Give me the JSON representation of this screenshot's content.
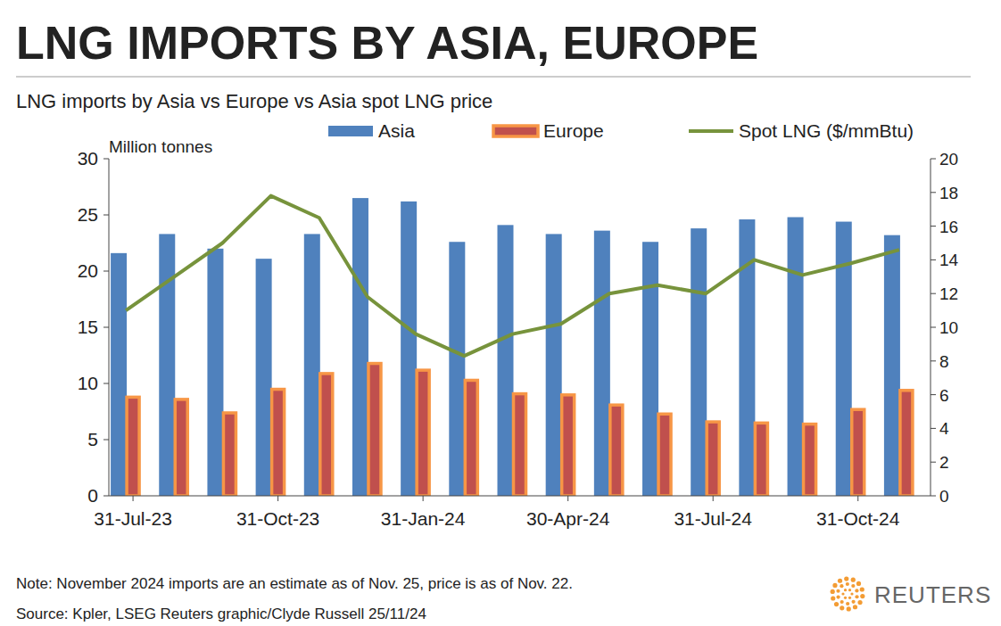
{
  "chart_data": {
    "type": "bar",
    "title": "LNG IMPORTS BY ASIA, EUROPE",
    "subtitle": "LNG imports by Asia vs Europe vs Asia spot LNG price",
    "y_label": "Million tonnes",
    "categories": [
      "31-Jul-23",
      null,
      null,
      "31-Oct-23",
      null,
      null,
      "31-Jan-24",
      null,
      null,
      "30-Apr-24",
      null,
      null,
      "31-Jul-24",
      null,
      null,
      "31-Oct-24",
      null
    ],
    "series": [
      {
        "name": "Asia",
        "color": "#4f81bd",
        "type": "bar",
        "values": [
          21.6,
          23.3,
          22.0,
          21.1,
          23.3,
          26.5,
          26.2,
          22.6,
          24.1,
          23.3,
          23.6,
          22.6,
          23.8,
          24.6,
          24.8,
          24.4,
          23.2
        ]
      },
      {
        "name": "Europe",
        "color": "#c0504d",
        "type": "bar",
        "values": [
          8.9,
          8.7,
          7.5,
          9.6,
          11.0,
          11.9,
          11.3,
          10.4,
          9.2,
          9.1,
          8.2,
          7.4,
          6.7,
          6.6,
          6.5,
          7.8,
          9.5
        ]
      },
      {
        "name": "Spot LNG ($/mmBtu)",
        "color": "#77933c",
        "type": "line",
        "axis": "y2",
        "values": [
          11.0,
          13.0,
          15.0,
          17.8,
          16.5,
          11.8,
          9.6,
          8.3,
          9.6,
          10.2,
          12.0,
          12.5,
          12.0,
          14.0,
          13.1,
          13.8,
          14.6
        ]
      }
    ],
    "ylim": [
      0,
      30
    ],
    "yticks": [
      0,
      5,
      10,
      15,
      20,
      25,
      30
    ],
    "y2lim": [
      0,
      20
    ],
    "y2ticks": [
      0,
      2,
      4,
      6,
      8,
      10,
      12,
      14,
      16,
      18,
      20
    ],
    "legend": "top",
    "grid": false,
    "note": "Note: November 2024 imports are an estimate as of Nov. 25, price is as of Nov. 22.",
    "source": "Source: Kpler, LSEG    Reuters graphic/Clyde Russell 25/11/24",
    "logo": "REUTERS"
  }
}
